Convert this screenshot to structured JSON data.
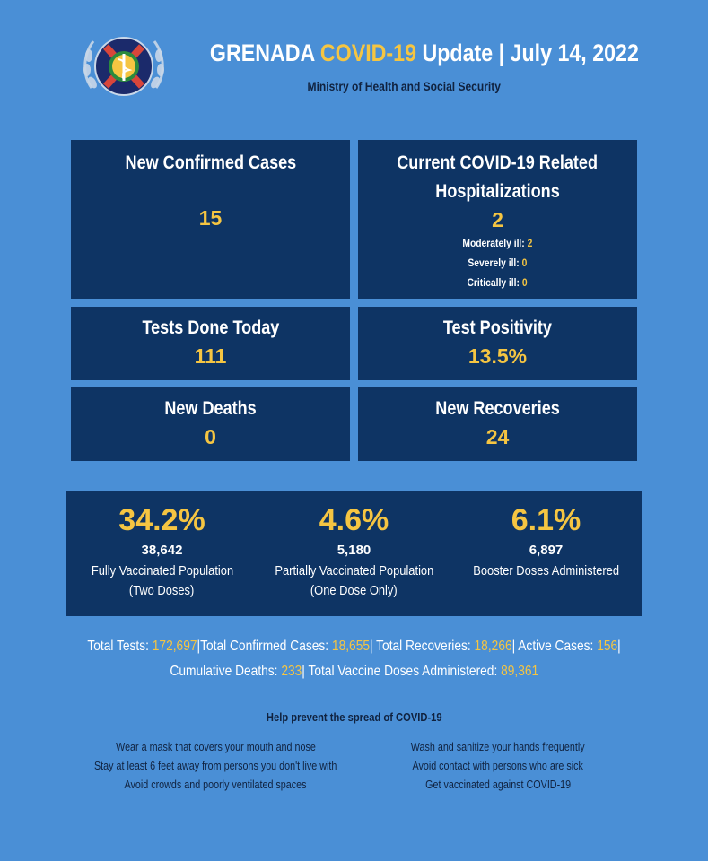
{
  "header": {
    "title_prefix": "GRENADA ",
    "title_accent": "COVID-19",
    "title_suffix": " Update | July 14, 2022",
    "subtitle": "Ministry of Health and Social Security"
  },
  "stats": {
    "confirmed": {
      "label": "New Confirmed Cases",
      "value": "15"
    },
    "hospitalizations": {
      "label_line1": "Current COVID-19 Related",
      "label_line2": "Hospitalizations",
      "value": "2",
      "breakdown": [
        {
          "label": "Moderately ill: ",
          "value": "2"
        },
        {
          "label": "Severely ill: ",
          "value": "0"
        },
        {
          "label": "Critically ill: ",
          "value": "0"
        }
      ]
    },
    "tests_today": {
      "label": "Tests Done Today",
      "value": "111"
    },
    "positivity": {
      "label": "Test Positivity",
      "value": "13.5%"
    },
    "deaths": {
      "label": "New Deaths",
      "value": "0"
    },
    "recoveries": {
      "label": "New Recoveries",
      "value": "24"
    }
  },
  "vaccination": [
    {
      "pct": "34.2%",
      "count": "38,642",
      "desc1": "Fully Vaccinated Population",
      "desc2": "(Two Doses)"
    },
    {
      "pct": "4.6%",
      "count": "5,180",
      "desc1": "Partially Vaccinated Population",
      "desc2": "(One Dose Only)"
    },
    {
      "pct": "6.1%",
      "count": "6,897",
      "desc1": "Booster Doses Administered",
      "desc2": ""
    }
  ],
  "totals": {
    "tests_label": "Total Tests: ",
    "tests": "172,697",
    "confirmed_label": "|Total Confirmed Cases: ",
    "confirmed": "18,655",
    "recoveries_label": "| Total Recoveries: ",
    "recoveries": "18,266",
    "active_label": "| Active Cases: ",
    "active": "156",
    "active_end": "|",
    "deaths_label": "Cumulative Deaths: ",
    "deaths": "233",
    "vaccine_label": "| Total Vaccine Doses Administered: ",
    "vaccine": "89,361"
  },
  "prevention": {
    "title": "Help prevent the spread of COVID-19",
    "left": [
      "Wear a mask that covers your mouth and nose",
      "Stay at least 6 feet away from persons you don't live with",
      "Avoid crowds and poorly ventilated spaces"
    ],
    "right": [
      "Wash and sanitize your hands frequently",
      "Avoid contact with persons who are sick",
      "Get vaccinated against COVID-19"
    ]
  },
  "colors": {
    "background": "#4a8fd6",
    "box": "#0e3464",
    "accent": "#f5c542"
  },
  "logo_icon": "ministry-of-health-emblem-icon"
}
